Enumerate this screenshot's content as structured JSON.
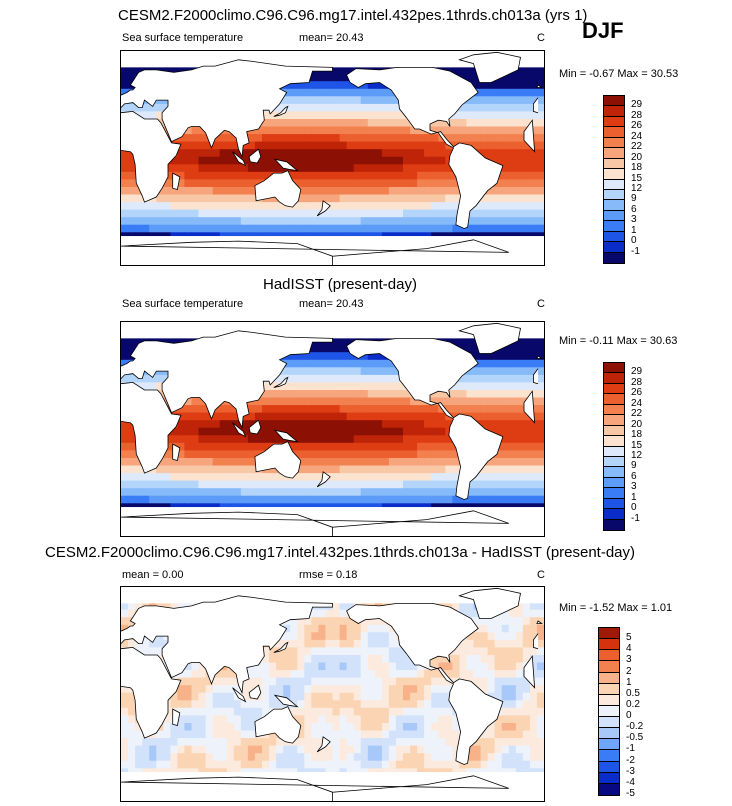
{
  "season": "DJF",
  "palette_main": [
    "#08086b",
    "#0a2cc8",
    "#1f55e6",
    "#3a7cf5",
    "#5c9cf8",
    "#86baf9",
    "#b4d5fb",
    "#deeafb",
    "#fbe3d0",
    "#f8c8a6",
    "#f6a57c",
    "#f2814f",
    "#ec5f2e",
    "#de3c13",
    "#c02408",
    "#8c1004"
  ],
  "palette_diff": [
    "#080880",
    "#0a2cc8",
    "#1f55e6",
    "#3a7cf5",
    "#6fa6f9",
    "#a8c8fa",
    "#d2e2fb",
    "#eef3fb",
    "#fbeadd",
    "#fbd4b4",
    "#f7b28a",
    "#f2814f",
    "#ec5f2e",
    "#d4330e",
    "#a01806"
  ],
  "panels": [
    {
      "title": "CESM2.F2000climo.C96.C96.mg17.intel.432pes.1thrds.ch013a (yrs 1)",
      "left_label": "Sea surface temperature",
      "stat_label": "mean=  20.43",
      "units": "C",
      "minmax": "Min =  -0.67 Max =  30.53"
    },
    {
      "title": "HadISST (present-day)",
      "left_label": "Sea surface temperature",
      "stat_label": "mean=  20.43",
      "units": "C",
      "minmax": "Min =  -0.11 Max =  30.63"
    },
    {
      "title": "CESM2.F2000climo.C96.C96.mg17.intel.432pes.1thrds.ch013a - HadISST (present-day)",
      "left_label": "mean =   0.00",
      "stat_label": "rmse =   0.18",
      "units": "C",
      "minmax": "Min =  -1.52 Max =  1.01"
    }
  ],
  "chart_data": [
    {
      "type": "heatmap",
      "title": "CESM2.F2000climo.C96.C96.mg17.intel.432pes.1thrds.ch013a (yrs 1)",
      "variable": "Sea surface temperature",
      "units": "C",
      "mean": 20.43,
      "min": -0.67,
      "max": 30.53,
      "colorbar_levels": [
        29,
        28,
        26,
        24,
        22,
        20,
        18,
        15,
        12,
        9,
        6,
        3,
        1,
        0,
        -1
      ],
      "colors": [
        "#08086b",
        "#0a2cc8",
        "#1f55e6",
        "#3a7cf5",
        "#5c9cf8",
        "#86baf9",
        "#b4d5fb",
        "#deeafb",
        "#fbe3d0",
        "#f8c8a6",
        "#f6a57c",
        "#f2814f",
        "#ec5f2e",
        "#de3c13",
        "#c02408",
        "#8c1004"
      ]
    },
    {
      "type": "heatmap",
      "title": "HadISST (present-day)",
      "variable": "Sea surface temperature",
      "units": "C",
      "mean": 20.43,
      "min": -0.11,
      "max": 30.63,
      "colorbar_levels": [
        29,
        28,
        26,
        24,
        22,
        20,
        18,
        15,
        12,
        9,
        6,
        3,
        1,
        0,
        -1
      ],
      "colors": [
        "#08086b",
        "#0a2cc8",
        "#1f55e6",
        "#3a7cf5",
        "#5c9cf8",
        "#86baf9",
        "#b4d5fb",
        "#deeafb",
        "#fbe3d0",
        "#f8c8a6",
        "#f6a57c",
        "#f2814f",
        "#ec5f2e",
        "#de3c13",
        "#c02408",
        "#8c1004"
      ]
    },
    {
      "type": "heatmap",
      "title": "CESM2.F2000climo.C96.C96.mg17.intel.432pes.1thrds.ch013a - HadISST (present-day)",
      "units": "C",
      "mean": 0.0,
      "rmse": 0.18,
      "min": -1.52,
      "max": 1.01,
      "colorbar_levels": [
        5,
        4,
        3,
        2,
        1,
        0.5,
        0.2,
        0,
        -0.2,
        -0.5,
        -1,
        -2,
        -3,
        -4,
        -5
      ],
      "colors": [
        "#080880",
        "#0a2cc8",
        "#1f55e6",
        "#3a7cf5",
        "#6fa6f9",
        "#a8c8fa",
        "#d2e2fb",
        "#eef3fb",
        "#fbeadd",
        "#fbd4b4",
        "#f7b28a",
        "#f2814f",
        "#ec5f2e",
        "#d4330e",
        "#a01806"
      ]
    }
  ]
}
